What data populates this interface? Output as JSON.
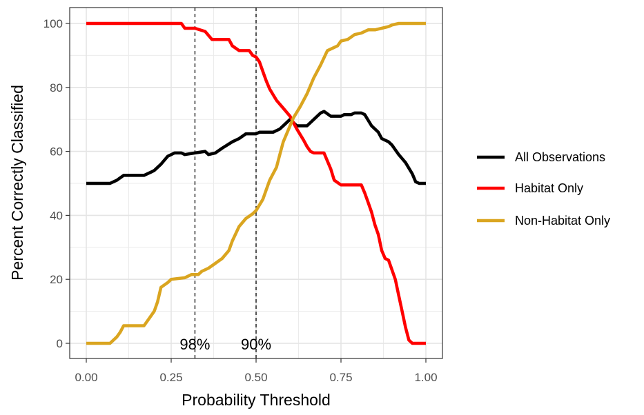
{
  "chart_data": {
    "type": "line",
    "title": "",
    "xlabel": "Probability Threshold",
    "ylabel": "Percent Correctly Classified",
    "xlim": [
      0,
      1
    ],
    "ylim": [
      0,
      100
    ],
    "x_ticks": [
      0,
      0.25,
      0.5,
      0.75,
      1
    ],
    "x_tick_labels": [
      "0.00",
      "0.25",
      "0.50",
      "0.75",
      "1.00"
    ],
    "y_ticks": [
      0,
      20,
      40,
      60,
      80,
      100
    ],
    "y_tick_labels": [
      "0",
      "20",
      "40",
      "60",
      "80",
      "100"
    ],
    "grid": true,
    "legend_position": "right",
    "series": [
      {
        "name": "All Observations",
        "color": "#000000",
        "points": [
          [
            0,
            50
          ],
          [
            0.07,
            50
          ],
          [
            0.09,
            51
          ],
          [
            0.11,
            52.5
          ],
          [
            0.17,
            52.5
          ],
          [
            0.19,
            53.5
          ],
          [
            0.2,
            54
          ],
          [
            0.22,
            56
          ],
          [
            0.24,
            58.5
          ],
          [
            0.26,
            59.5
          ],
          [
            0.28,
            59.5
          ],
          [
            0.29,
            59
          ],
          [
            0.32,
            59.5
          ],
          [
            0.35,
            60
          ],
          [
            0.36,
            59
          ],
          [
            0.38,
            59.5
          ],
          [
            0.4,
            61
          ],
          [
            0.43,
            63
          ],
          [
            0.45,
            64
          ],
          [
            0.47,
            65.5
          ],
          [
            0.5,
            65.5
          ],
          [
            0.51,
            66
          ],
          [
            0.55,
            66
          ],
          [
            0.57,
            67
          ],
          [
            0.59,
            69
          ],
          [
            0.6,
            70
          ],
          [
            0.62,
            68
          ],
          [
            0.65,
            68
          ],
          [
            0.67,
            70
          ],
          [
            0.69,
            72
          ],
          [
            0.7,
            72.5
          ],
          [
            0.72,
            71
          ],
          [
            0.75,
            71
          ],
          [
            0.76,
            71.5
          ],
          [
            0.78,
            71.5
          ],
          [
            0.79,
            72
          ],
          [
            0.81,
            72
          ],
          [
            0.82,
            71.5
          ],
          [
            0.84,
            68
          ],
          [
            0.86,
            66
          ],
          [
            0.87,
            64
          ],
          [
            0.89,
            63
          ],
          [
            0.9,
            62
          ],
          [
            0.92,
            59
          ],
          [
            0.94,
            56.5
          ],
          [
            0.96,
            53
          ],
          [
            0.97,
            50.5
          ],
          [
            0.98,
            50
          ],
          [
            1,
            50
          ]
        ]
      },
      {
        "name": "Habitat Only",
        "color": "#ff0000",
        "points": [
          [
            0,
            100
          ],
          [
            0.28,
            100
          ],
          [
            0.29,
            98.5
          ],
          [
            0.32,
            98.5
          ],
          [
            0.35,
            97.5
          ],
          [
            0.37,
            95
          ],
          [
            0.42,
            95
          ],
          [
            0.43,
            93
          ],
          [
            0.45,
            91.5
          ],
          [
            0.48,
            91.5
          ],
          [
            0.49,
            90
          ],
          [
            0.5,
            89.5
          ],
          [
            0.51,
            88
          ],
          [
            0.52,
            85
          ],
          [
            0.53,
            82
          ],
          [
            0.54,
            79.5
          ],
          [
            0.56,
            76
          ],
          [
            0.58,
            73.5
          ],
          [
            0.6,
            71
          ],
          [
            0.62,
            67
          ],
          [
            0.64,
            63.5
          ],
          [
            0.65,
            61.5
          ],
          [
            0.66,
            60
          ],
          [
            0.67,
            59.5
          ],
          [
            0.7,
            59.5
          ],
          [
            0.71,
            57
          ],
          [
            0.72,
            54.5
          ],
          [
            0.73,
            51
          ],
          [
            0.75,
            49.5
          ],
          [
            0.76,
            49.5
          ],
          [
            0.81,
            49.5
          ],
          [
            0.82,
            47
          ],
          [
            0.83,
            44
          ],
          [
            0.84,
            41
          ],
          [
            0.85,
            37
          ],
          [
            0.86,
            34
          ],
          [
            0.87,
            29
          ],
          [
            0.88,
            26.5
          ],
          [
            0.89,
            26
          ],
          [
            0.9,
            23
          ],
          [
            0.91,
            20
          ],
          [
            0.92,
            15
          ],
          [
            0.93,
            10
          ],
          [
            0.94,
            5
          ],
          [
            0.95,
            1
          ],
          [
            0.96,
            0
          ],
          [
            1,
            0
          ]
        ]
      },
      {
        "name": "Non-Habitat Only",
        "color": "#daa520",
        "points": [
          [
            0,
            0
          ],
          [
            0.07,
            0
          ],
          [
            0.09,
            2
          ],
          [
            0.1,
            3.5
          ],
          [
            0.11,
            5.5
          ],
          [
            0.17,
            5.5
          ],
          [
            0.18,
            7
          ],
          [
            0.2,
            10
          ],
          [
            0.21,
            13
          ],
          [
            0.22,
            17.5
          ],
          [
            0.24,
            19
          ],
          [
            0.25,
            20
          ],
          [
            0.29,
            20.5
          ],
          [
            0.31,
            21.5
          ],
          [
            0.33,
            21.5
          ],
          [
            0.34,
            22.5
          ],
          [
            0.36,
            23.5
          ],
          [
            0.38,
            25
          ],
          [
            0.4,
            26.5
          ],
          [
            0.42,
            29
          ],
          [
            0.43,
            32
          ],
          [
            0.45,
            36.5
          ],
          [
            0.47,
            39
          ],
          [
            0.49,
            40.5
          ],
          [
            0.5,
            41.5
          ],
          [
            0.52,
            45
          ],
          [
            0.54,
            51
          ],
          [
            0.56,
            55
          ],
          [
            0.57,
            59
          ],
          [
            0.58,
            63
          ],
          [
            0.59,
            65.5
          ],
          [
            0.61,
            70.5
          ],
          [
            0.63,
            74
          ],
          [
            0.65,
            78
          ],
          [
            0.67,
            83
          ],
          [
            0.69,
            87
          ],
          [
            0.71,
            91.5
          ],
          [
            0.73,
            92.5
          ],
          [
            0.74,
            93
          ],
          [
            0.75,
            94.5
          ],
          [
            0.77,
            95
          ],
          [
            0.79,
            96.5
          ],
          [
            0.81,
            97
          ],
          [
            0.83,
            98
          ],
          [
            0.85,
            98
          ],
          [
            0.87,
            98.5
          ],
          [
            0.89,
            99
          ],
          [
            0.9,
            99.5
          ],
          [
            0.92,
            100
          ],
          [
            1,
            100
          ]
        ]
      }
    ],
    "vlines": [
      {
        "x": 0.32,
        "style": "dashed",
        "label": "98%"
      },
      {
        "x": 0.5,
        "style": "dashed",
        "label": "90%"
      }
    ]
  }
}
